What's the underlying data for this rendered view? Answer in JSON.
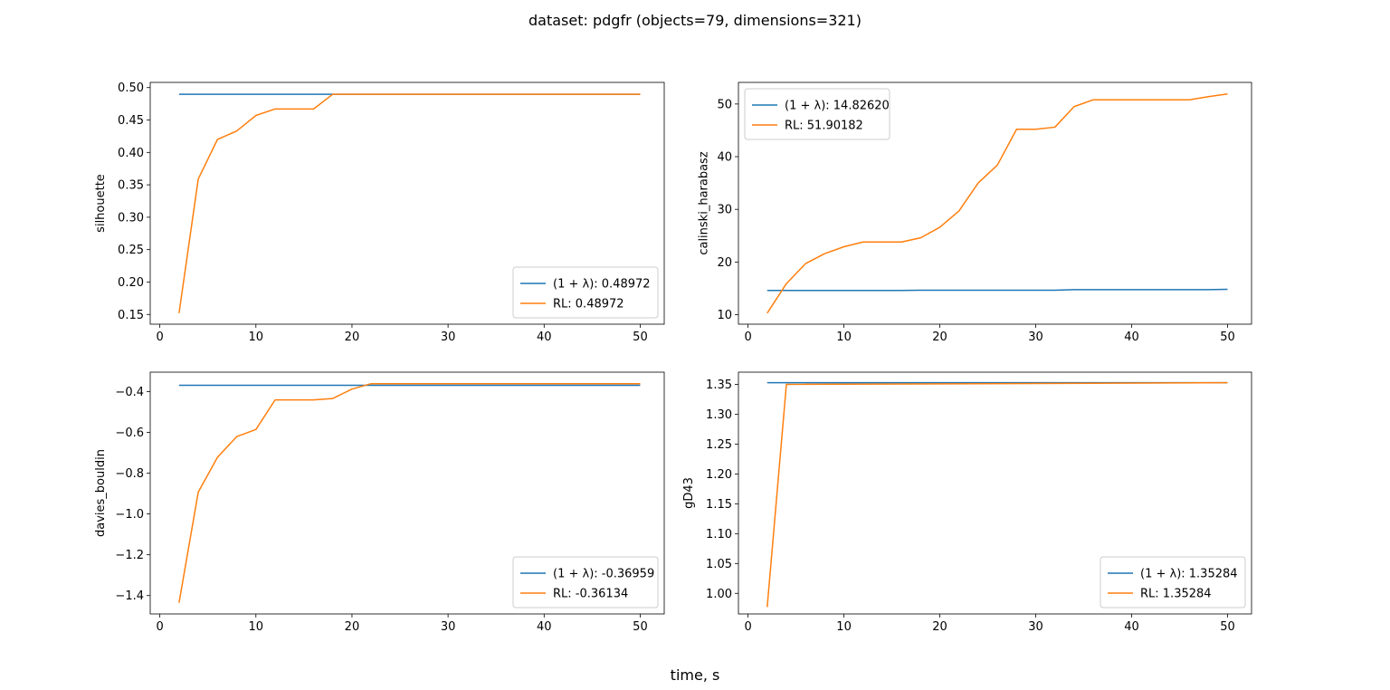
{
  "figure": {
    "title": "dataset: pdgfr (objects=79, dimensions=321)",
    "xlabel": "time, s"
  },
  "colors": {
    "baseline": "#1f77b4",
    "rl": "#ff7f0e"
  },
  "chart_data": [
    {
      "type": "line",
      "ylabel": "silhouette",
      "xlim": [
        -1,
        52.5
      ],
      "ylim": [
        0.135,
        0.508
      ],
      "xticks": [
        0,
        10,
        20,
        30,
        40,
        50
      ],
      "yticks": [
        0.15,
        0.2,
        0.25,
        0.3,
        0.35,
        0.4,
        0.45,
        0.5
      ],
      "ytick_labels": [
        "0.15",
        "0.20",
        "0.25",
        "0.30",
        "0.35",
        "0.40",
        "0.45",
        "0.50"
      ],
      "legend_position": "lower-right",
      "grid": false,
      "series": [
        {
          "name": "(1 + λ): 0.48972",
          "x": [
            2,
            50
          ],
          "y": [
            0.48972,
            0.48972
          ]
        },
        {
          "name": "RL: 0.48972",
          "x": [
            2,
            4,
            6,
            8,
            10,
            12,
            14,
            16,
            18,
            20,
            50
          ],
          "y": [
            0.152,
            0.359,
            0.42,
            0.433,
            0.457,
            0.467,
            0.467,
            0.467,
            0.48972,
            0.48972,
            0.48972
          ]
        }
      ]
    },
    {
      "type": "line",
      "ylabel": "calinski_harabasz",
      "xlim": [
        -1,
        52.5
      ],
      "ylim": [
        8.2,
        54.1
      ],
      "xticks": [
        0,
        10,
        20,
        30,
        40,
        50
      ],
      "yticks": [
        10,
        20,
        30,
        40,
        50
      ],
      "ytick_labels": [
        "10",
        "20",
        "30",
        "40",
        "50"
      ],
      "legend_position": "upper-left",
      "grid": false,
      "series": [
        {
          "name": "(1 + λ): 14.82620",
          "x": [
            2,
            16,
            18,
            32,
            34,
            48,
            50
          ],
          "y": [
            14.6,
            14.6,
            14.65,
            14.65,
            14.75,
            14.75,
            14.8262
          ]
        },
        {
          "name": "RL: 51.90182",
          "x": [
            2,
            4,
            6,
            8,
            10,
            12,
            14,
            16,
            18,
            20,
            22,
            24,
            26,
            28,
            30,
            32,
            34,
            36,
            38,
            40,
            42,
            44,
            46,
            48,
            50
          ],
          "y": [
            10.3,
            15.9,
            19.7,
            21.6,
            22.9,
            23.8,
            23.8,
            23.8,
            24.6,
            26.6,
            29.7,
            35.0,
            38.4,
            45.2,
            45.2,
            45.6,
            49.5,
            50.8,
            50.8,
            50.8,
            50.8,
            50.8,
            50.8,
            51.4,
            51.90182
          ]
        }
      ]
    },
    {
      "type": "line",
      "ylabel": "davies_bouldin",
      "xlim": [
        -1,
        52.5
      ],
      "ylim": [
        -1.49,
        -0.305
      ],
      "xticks": [
        0,
        10,
        20,
        30,
        40,
        50
      ],
      "yticks": [
        -1.4,
        -1.2,
        -1.0,
        -0.8,
        -0.6,
        -0.4
      ],
      "ytick_labels": [
        "−1.4",
        "−1.2",
        "−1.0",
        "−0.8",
        "−0.6",
        "−0.4"
      ],
      "legend_position": "lower-right",
      "grid": false,
      "series": [
        {
          "name": "(1 + λ): -0.36959",
          "x": [
            2,
            50
          ],
          "y": [
            -0.36959,
            -0.36959
          ]
        },
        {
          "name": "RL: -0.36134",
          "x": [
            2,
            4,
            6,
            8,
            10,
            12,
            14,
            16,
            18,
            20,
            22,
            50
          ],
          "y": [
            -1.435,
            -0.893,
            -0.722,
            -0.621,
            -0.586,
            -0.441,
            -0.441,
            -0.441,
            -0.434,
            -0.388,
            -0.36134,
            -0.36134
          ]
        }
      ]
    },
    {
      "type": "line",
      "ylabel": "gD43",
      "xlim": [
        -1,
        52.5
      ],
      "ylim": [
        0.9655,
        1.3705
      ],
      "xticks": [
        0,
        10,
        20,
        30,
        40,
        50
      ],
      "yticks": [
        1.0,
        1.05,
        1.1,
        1.15,
        1.2,
        1.25,
        1.3,
        1.35
      ],
      "ytick_labels": [
        "1.00",
        "1.05",
        "1.10",
        "1.15",
        "1.20",
        "1.25",
        "1.30",
        "1.35"
      ],
      "legend_position": "lower-right",
      "grid": false,
      "series": [
        {
          "name": "(1 + λ): 1.35284",
          "x": [
            2,
            50
          ],
          "y": [
            1.35284,
            1.35284
          ]
        },
        {
          "name": "RL: 1.35284",
          "x": [
            2,
            4,
            50
          ],
          "y": [
            0.977,
            1.35,
            1.35284
          ]
        }
      ]
    }
  ]
}
